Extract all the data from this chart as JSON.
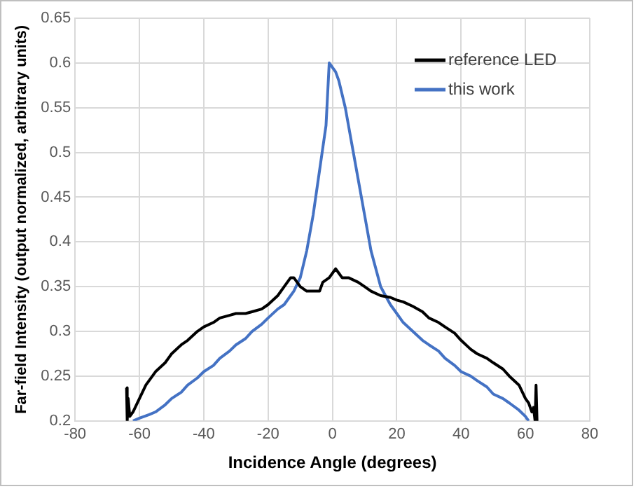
{
  "chart_data": {
    "type": "line",
    "xlabel": "Incidence Angle (degrees)",
    "ylabel": "Far-field Intensity (output normalized, arbitrary units)",
    "xlim": [
      -80,
      80
    ],
    "xticks": [
      -80,
      -60,
      -40,
      -20,
      0,
      20,
      40,
      60,
      80
    ],
    "ylim": [
      0.2,
      0.65
    ],
    "yticks": [
      0.2,
      0.25,
      0.3,
      0.35,
      0.4,
      0.45,
      0.5,
      0.55,
      0.6,
      0.65
    ],
    "grid": true,
    "legend": "top right",
    "marker": "none",
    "line_style": "solid",
    "series": [
      {
        "name": "reference LED",
        "color": "#000000",
        "x": [
          -64,
          -63.8,
          -63.5,
          -63,
          -62,
          -60,
          -58,
          -55,
          -52,
          -50,
          -47,
          -45,
          -42,
          -40,
          -37,
          -35,
          -32,
          -30,
          -27,
          -25,
          -22,
          -20,
          -17,
          -15,
          -13,
          -12,
          -10,
          -8,
          -6,
          -4,
          -3,
          -1,
          0,
          1,
          2,
          3,
          5,
          8,
          10,
          12,
          15,
          18,
          20,
          22,
          25,
          28,
          30,
          33,
          35,
          38,
          40,
          43,
          45,
          48,
          50,
          53,
          55,
          58,
          60,
          61,
          62,
          62.5,
          63,
          63.3,
          63.6,
          64
        ],
        "values": [
          0.237,
          0.2,
          0.225,
          0.205,
          0.21,
          0.225,
          0.24,
          0.255,
          0.265,
          0.275,
          0.285,
          0.29,
          0.3,
          0.305,
          0.31,
          0.315,
          0.318,
          0.32,
          0.32,
          0.322,
          0.325,
          0.33,
          0.34,
          0.35,
          0.36,
          0.36,
          0.35,
          0.345,
          0.345,
          0.345,
          0.355,
          0.36,
          0.365,
          0.37,
          0.365,
          0.36,
          0.36,
          0.355,
          0.35,
          0.345,
          0.34,
          0.338,
          0.335,
          0.333,
          0.328,
          0.322,
          0.315,
          0.31,
          0.305,
          0.298,
          0.29,
          0.28,
          0.275,
          0.27,
          0.265,
          0.258,
          0.25,
          0.24,
          0.225,
          0.22,
          0.21,
          0.215,
          0.2,
          0.24,
          0.2,
          0.2
        ]
      },
      {
        "name": "this work",
        "color": "#4472c4",
        "x": [
          -62,
          -60,
          -57,
          -55,
          -52,
          -50,
          -47,
          -45,
          -42,
          -40,
          -37,
          -35,
          -32,
          -30,
          -27,
          -25,
          -22,
          -20,
          -17,
          -15,
          -13,
          -12,
          -10,
          -8,
          -6,
          -4,
          -2,
          -1,
          0,
          1,
          2,
          4,
          6,
          8,
          10,
          12,
          15,
          18,
          20,
          22,
          25,
          28,
          30,
          33,
          35,
          38,
          40,
          43,
          45,
          48,
          50,
          53,
          55,
          58,
          60,
          61
        ],
        "values": [
          0.2,
          0.203,
          0.207,
          0.21,
          0.218,
          0.225,
          0.232,
          0.24,
          0.248,
          0.255,
          0.262,
          0.27,
          0.278,
          0.285,
          0.292,
          0.3,
          0.308,
          0.315,
          0.325,
          0.33,
          0.34,
          0.345,
          0.36,
          0.39,
          0.43,
          0.48,
          0.53,
          0.6,
          0.595,
          0.59,
          0.58,
          0.55,
          0.51,
          0.47,
          0.43,
          0.39,
          0.35,
          0.33,
          0.32,
          0.31,
          0.3,
          0.29,
          0.285,
          0.278,
          0.27,
          0.262,
          0.255,
          0.25,
          0.245,
          0.238,
          0.23,
          0.225,
          0.22,
          0.212,
          0.205,
          0.2
        ]
      }
    ]
  }
}
